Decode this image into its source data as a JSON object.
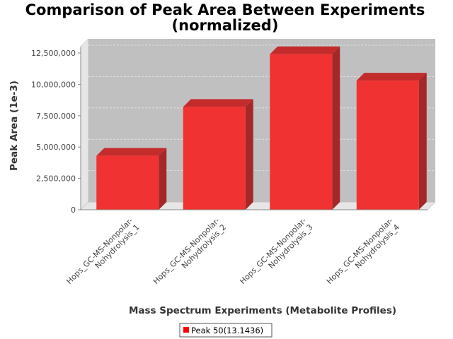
{
  "chart_data": {
    "type": "bar",
    "title": [
      "Comparison of Peak Area Between Experiments",
      "(normalized)"
    ],
    "xlabel": "Mass Spectrum Experiments (Metabolite Profiles)",
    "ylabel": "Peak Area (1e-3)",
    "ylim": [
      0,
      12500000
    ],
    "yticks": [
      0,
      2500000,
      5000000,
      7500000,
      10000000,
      12500000
    ],
    "ytick_labels": [
      "0",
      "2,500,000",
      "5,000,000",
      "7,500,000",
      "10,000,000",
      "12,500,000"
    ],
    "categories": [
      [
        "Hops_GC-MS-Nonpolar-",
        "Nohydrolysis_1"
      ],
      [
        "Hops_GC-MS-Nonpolar-",
        "Nohydrolysis_2"
      ],
      [
        "Hops_GC-MS-Nonpolar-",
        "Nohydrolysis_3"
      ],
      [
        "Hops_GC-MS-Nonpolar-",
        "Nohydrolysis_4"
      ]
    ],
    "series": [
      {
        "name": "Peak 50(13.1436)",
        "values": [
          4300000,
          8200000,
          12400000,
          10300000
        ]
      }
    ],
    "grid": true,
    "legend_position": "bottom-center",
    "colors": {
      "bar_front": "#f03232",
      "bar_side": "#a42828",
      "bar_top": "#c42c2c",
      "plot_back": "#c0c0c0",
      "plot_floor_side": "#e6e6e6",
      "grid": "#e8e8e8"
    }
  }
}
